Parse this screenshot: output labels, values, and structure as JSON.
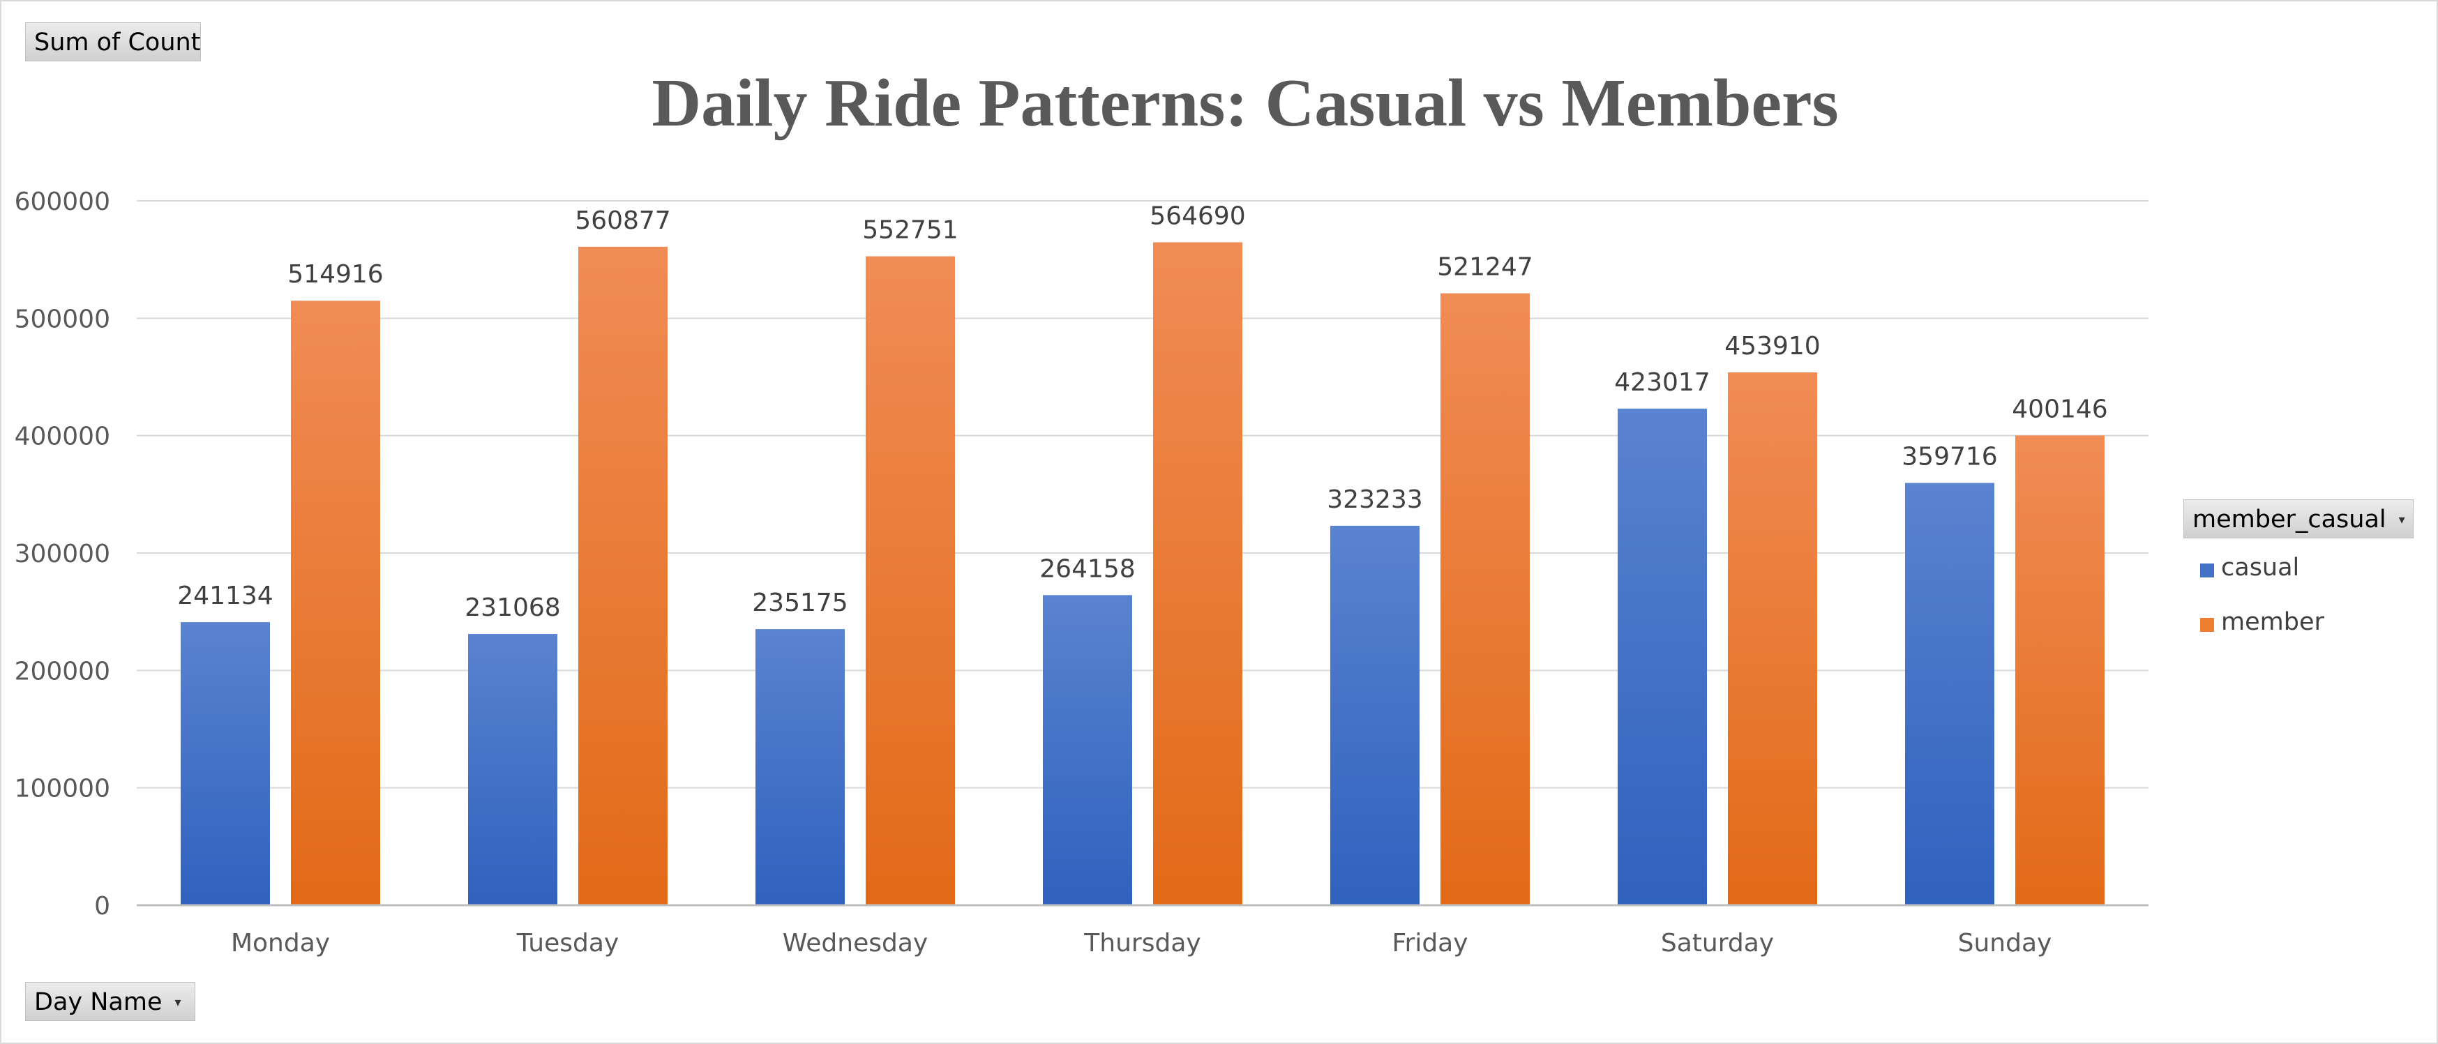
{
  "filters": {
    "values_field": "Sum of Count",
    "axis_field": "Day Name",
    "legend_field": "member_casual"
  },
  "colors": {
    "casual_top": "#5a83d0",
    "casual_bottom": "#2f61be",
    "member_top": "#f08c55",
    "member_bottom": "#e26a18",
    "title": "#595959",
    "gridline": "#d9d9d9",
    "axis_text": "#595959",
    "label_text": "#404040"
  },
  "chart_data": {
    "type": "bar",
    "title": "Daily Ride Patterns: Casual vs Members",
    "categories": [
      "Monday",
      "Tuesday",
      "Wednesday",
      "Thursday",
      "Friday",
      "Saturday",
      "Sunday"
    ],
    "series": [
      {
        "name": "casual",
        "values": [
          241134,
          231068,
          235175,
          264158,
          323233,
          423017,
          359716
        ]
      },
      {
        "name": "member",
        "values": [
          514916,
          560877,
          552751,
          564690,
          521247,
          453910,
          400146
        ]
      }
    ],
    "ylim": [
      0,
      600000
    ],
    "yticks": [
      0,
      100000,
      200000,
      300000,
      400000,
      500000,
      600000
    ],
    "grid": true,
    "legend_position": "right",
    "data_labels": true
  }
}
